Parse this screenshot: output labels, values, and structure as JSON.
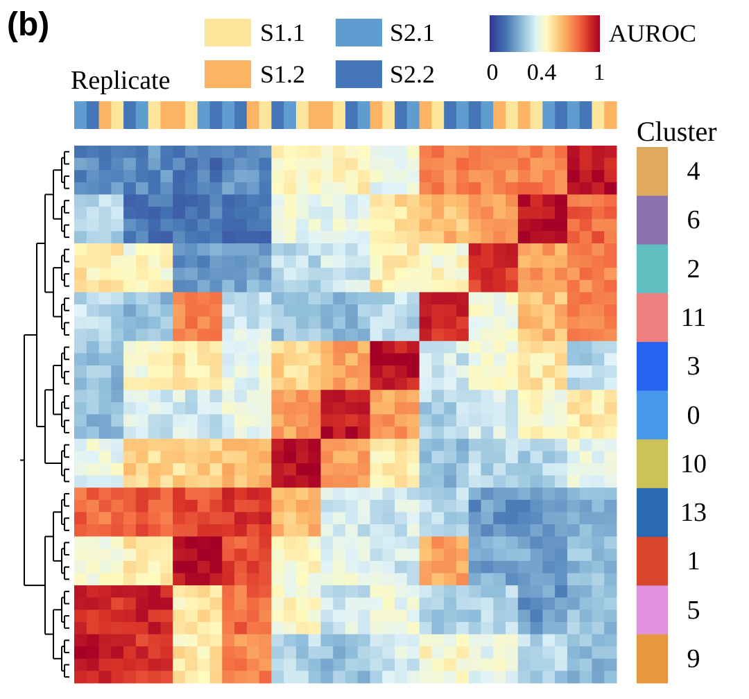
{
  "panel_label": "(b)",
  "chart_data": {
    "type": "heatmap",
    "title": "",
    "colorbar": {
      "label": "AUROC",
      "ticks": [
        "0",
        "0.4",
        "1"
      ],
      "range": [
        0,
        1
      ]
    },
    "replicate_legend": {
      "title": "Replicate",
      "entries": [
        {
          "name": "S1.1",
          "color": "#fde69c"
        },
        {
          "name": "S1.2",
          "color": "#fdb462"
        },
        {
          "name": "S2.1",
          "color": "#5f9dd0"
        },
        {
          "name": "S2.2",
          "color": "#4577b8"
        }
      ]
    },
    "replicates": [
      "S2.1",
      "S2.2",
      "S1.2",
      "S1.1",
      "S2.2",
      "S2.1",
      "S1.1",
      "S1.2",
      "S1.2",
      "S1.1",
      "S2.1",
      "S2.2",
      "S2.1",
      "S2.2",
      "S1.2",
      "S1.1",
      "S2.2",
      "S2.1",
      "S1.1",
      "S1.2",
      "S1.2",
      "S1.1",
      "S2.2",
      "S2.1",
      "S1.2",
      "S1.1",
      "S2.2",
      "S2.1",
      "S1.2",
      "S1.1",
      "S2.2",
      "S2.1",
      "S2.2",
      "S2.1",
      "S1.2",
      "S1.1",
      "S1.2",
      "S1.1",
      "S2.1",
      "S2.2",
      "S2.1",
      "S2.2",
      "S1.1",
      "S1.2"
    ],
    "cluster_legend": {
      "title": "Cluster",
      "clusters": [
        {
          "label": "4",
          "color": "#e0a960"
        },
        {
          "label": "6",
          "color": "#8a72b0"
        },
        {
          "label": "2",
          "color": "#60bfc0"
        },
        {
          "label": "11",
          "color": "#f08080"
        },
        {
          "label": "3",
          "color": "#2563f0"
        },
        {
          "label": "0",
          "color": "#4a97ee"
        },
        {
          "label": "10",
          "color": "#cdc257"
        },
        {
          "label": "13",
          "color": "#2a69b4"
        },
        {
          "label": "1",
          "color": "#d8462b"
        },
        {
          "label": "5",
          "color": "#e092e0"
        },
        {
          "label": "9",
          "color": "#e8963f"
        }
      ]
    },
    "replicates_per_cluster": 4,
    "block_auroc": [
      [
        0.2,
        0.2,
        0.15,
        0.2,
        0.5,
        0.52,
        0.45,
        0.75,
        0.75,
        0.76,
        0.95
      ],
      [
        0.35,
        0.15,
        0.15,
        0.15,
        0.45,
        0.45,
        0.58,
        0.65,
        0.7,
        0.96,
        0.8
      ],
      [
        0.55,
        0.5,
        0.22,
        0.26,
        0.36,
        0.4,
        0.55,
        0.5,
        0.9,
        0.7,
        0.75
      ],
      [
        0.36,
        0.3,
        0.75,
        0.4,
        0.3,
        0.3,
        0.36,
        0.92,
        0.48,
        0.65,
        0.75
      ],
      [
        0.3,
        0.5,
        0.55,
        0.45,
        0.6,
        0.7,
        0.95,
        0.4,
        0.48,
        0.55,
        0.36
      ],
      [
        0.3,
        0.4,
        0.4,
        0.45,
        0.7,
        0.95,
        0.7,
        0.35,
        0.4,
        0.5,
        0.55
      ],
      [
        0.45,
        0.6,
        0.6,
        0.65,
        0.98,
        0.7,
        0.55,
        0.3,
        0.35,
        0.35,
        0.45
      ],
      [
        0.8,
        0.82,
        0.85,
        0.9,
        0.65,
        0.4,
        0.4,
        0.35,
        0.22,
        0.22,
        0.26
      ],
      [
        0.5,
        0.55,
        0.97,
        0.85,
        0.5,
        0.45,
        0.4,
        0.7,
        0.25,
        0.25,
        0.3
      ],
      [
        0.9,
        0.92,
        0.55,
        0.8,
        0.5,
        0.4,
        0.45,
        0.35,
        0.35,
        0.22,
        0.3
      ],
      [
        0.95,
        0.9,
        0.55,
        0.75,
        0.35,
        0.3,
        0.4,
        0.5,
        0.45,
        0.35,
        0.3
      ]
    ],
    "dendrogram": [
      [
        [
          [
            0,
            1
          ],
          [
            2,
            3
          ]
        ],
        [
          [
            4,
            5
          ],
          6
        ]
      ],
      [
        [
          7,
          8
        ],
        [
          9,
          10
        ]
      ]
    ]
  }
}
